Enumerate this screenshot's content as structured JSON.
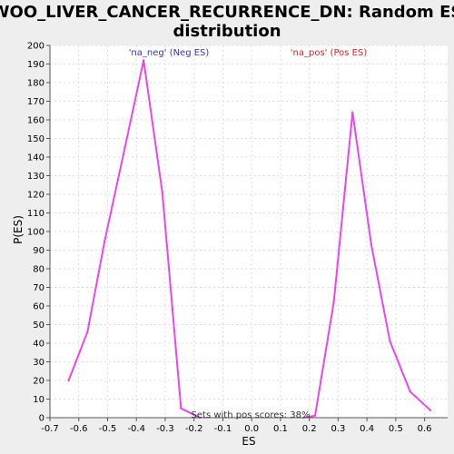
{
  "chart_data": {
    "type": "line",
    "title_line1": "WOO_LIVER_CANCER_RECURRENCE_DN: Random ES",
    "title_line2": "distribution",
    "xlabel": "ES",
    "ylabel": "P(ES)",
    "xlim": [
      -0.7,
      0.68
    ],
    "ylim": [
      0,
      200
    ],
    "xticks": [
      "-0.7",
      "-0.6",
      "-0.5",
      "-0.4",
      "-0.3",
      "-0.2",
      "-0.1",
      "0.0",
      "0.1",
      "0.2",
      "0.3",
      "0.4",
      "0.5",
      "0.6"
    ],
    "yticks": [
      "0",
      "10",
      "20",
      "30",
      "40",
      "50",
      "60",
      "70",
      "80",
      "90",
      "100",
      "110",
      "120",
      "130",
      "140",
      "150",
      "160",
      "170",
      "180",
      "190",
      "200"
    ],
    "grid": true,
    "series": [
      {
        "name": "'na_neg' (Neg ES)",
        "color": "#ee44ee",
        "x": [
          -0.635,
          -0.57,
          -0.51,
          -0.44,
          -0.375,
          -0.31,
          -0.245,
          -0.18
        ],
        "y": [
          20,
          46,
          95,
          145,
          192,
          121,
          5,
          0
        ]
      },
      {
        "name": "'na_pos' (Pos ES)",
        "color": "#ee44ee",
        "x": [
          0.18,
          0.22,
          0.285,
          0.35,
          0.415,
          0.48,
          0.55,
          0.62
        ],
        "y": [
          0,
          1,
          62,
          164,
          93,
          41,
          14,
          4
        ]
      }
    ],
    "annotations": {
      "neg_label": "'na_neg' (Neg ES)",
      "neg_color": "#3333cc",
      "pos_label": "'na_pos' (Pos ES)",
      "pos_color": "#dd2222",
      "footer": "Sets with pos scores: 38%"
    }
  }
}
